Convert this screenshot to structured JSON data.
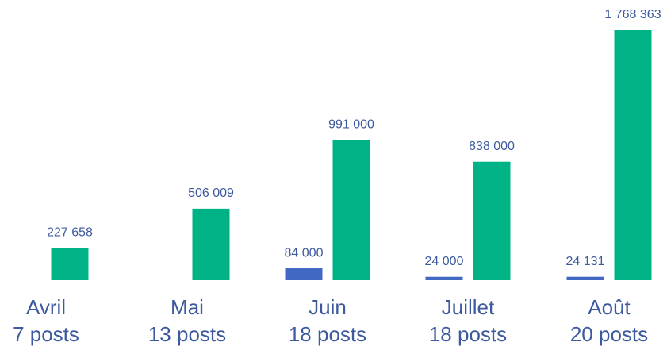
{
  "chart_data": {
    "type": "bar",
    "categories": [
      "Avril",
      "Mai",
      "Juin",
      "Juillet",
      "Août"
    ],
    "category_sublabels": [
      "7 posts",
      "13 posts",
      "18 posts",
      "18 posts",
      "20 posts"
    ],
    "series": [
      {
        "color": "#4169c4",
        "values": [
          null,
          null,
          84000,
          24000,
          24131
        ],
        "value_labels": [
          null,
          null,
          "84 000",
          "24 000",
          "24 131"
        ]
      },
      {
        "color": "#00b386",
        "values": [
          227658,
          506009,
          991000,
          838000,
          1768363
        ],
        "value_labels": [
          "227 658",
          "506 009",
          "991 000",
          "838 000",
          "1 768 363"
        ]
      }
    ]
  }
}
